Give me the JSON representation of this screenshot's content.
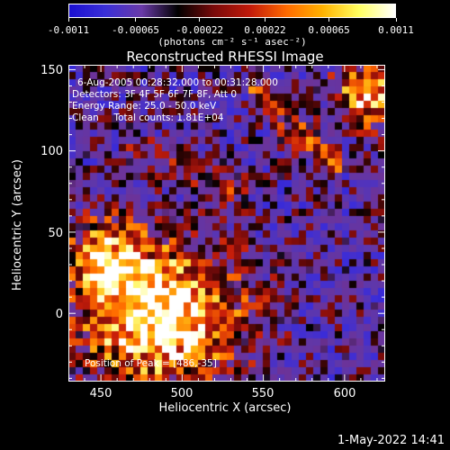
{
  "colorbar": {
    "ticks": [
      "-0.0011",
      "-0.00065",
      "-0.00022",
      "0.00022",
      "0.00065",
      "0.0011"
    ],
    "tick_values": [
      -0.0011,
      -0.00065,
      -0.00022,
      0.00022,
      0.00065,
      0.0011
    ],
    "min": -0.0011,
    "max": 0.0011,
    "unit_label": "(photons cm⁻² s⁻¹ asec⁻²)",
    "colors": [
      "#1a0fd0",
      "#3a2fd8",
      "#6a3aa8",
      "#000000",
      "#7a0a0a",
      "#c21a0a",
      "#ff6a00",
      "#ffb200",
      "#ffff60",
      "#ffffff"
    ]
  },
  "title": "Reconstructed RHESSI Image",
  "info": {
    "time": "6-Aug-2005 00:28:32.000 to 00:31:28.000",
    "detectors": "Detectors: 3F 4F 5F 6F 7F 8F, Att 0",
    "energy": "Energy Range: 25.0 - 50.0 keV",
    "clean": "Clean     Total counts: 1.81E+04",
    "peak": "Position of Peak = [486,-35]"
  },
  "chart_data": {
    "type": "heatmap",
    "title": "Reconstructed RHESSI Image",
    "xlabel": "Heliocentric X (arcsec)",
    "ylabel": "Heliocentric Y (arcsec)",
    "xlim": [
      430,
      625
    ],
    "ylim": [
      -42,
      153
    ],
    "x_ticks": [
      450,
      500,
      550,
      600
    ],
    "y_ticks": [
      0,
      50,
      100,
      150
    ],
    "peak_position": [
      486,
      -35
    ],
    "colorbar_range": [
      -0.0011,
      0.0011
    ]
  },
  "axes": {
    "x_tick_labels": [
      "450",
      "500",
      "550",
      "600"
    ],
    "y_tick_labels": [
      "0",
      "50",
      "100",
      "150"
    ],
    "xlabel": "Heliocentric X (arcsec)",
    "ylabel": "Heliocentric Y (arcsec)"
  },
  "timestamp": "1-May-2022 14:41"
}
